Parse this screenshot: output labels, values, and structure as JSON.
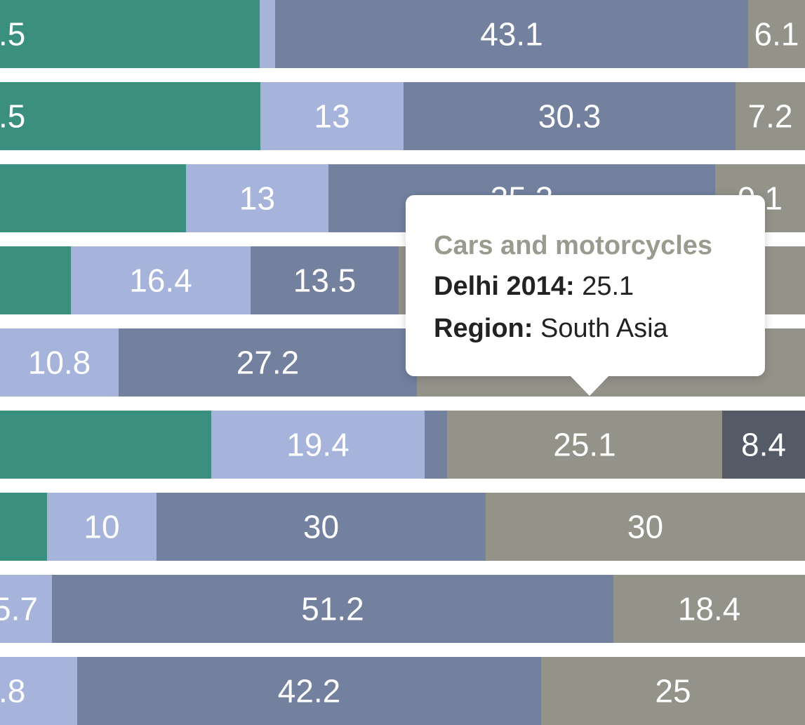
{
  "chart_data": {
    "type": "bar",
    "orientation": "horizontal",
    "stacked": true,
    "colors": [
      "#3b8f7f",
      "#a6b4dc",
      "#73819f",
      "#93938a",
      "#545a66"
    ],
    "rows": [
      {
        "segments": [
          {
            "value": null,
            "label": ".5",
            "color": "#3b8f7f",
            "start": 0,
            "end": 370
          },
          {
            "value": null,
            "label": "",
            "color": "#a6b4dc",
            "start": 370,
            "end": 392
          },
          {
            "value": 43.1,
            "label": "43.1",
            "color": "#73819f",
            "start": 392,
            "end": 1066
          },
          {
            "value": 6.1,
            "label": "6.1",
            "color": "#93938a",
            "start": 1066,
            "end": 1147
          }
        ]
      },
      {
        "segments": [
          {
            "value": null,
            "label": ".5",
            "color": "#3b8f7f",
            "start": 0,
            "end": 371
          },
          {
            "value": 13,
            "label": "13",
            "color": "#a6b4dc",
            "start": 371,
            "end": 575
          },
          {
            "value": 30.3,
            "label": "30.3",
            "color": "#73819f",
            "start": 575,
            "end": 1048
          },
          {
            "value": 7.2,
            "label": "7.2",
            "color": "#93938a",
            "start": 1048,
            "end": 1147
          }
        ]
      },
      {
        "segments": [
          {
            "value": null,
            "label": "",
            "color": "#3b8f7f",
            "start": 0,
            "end": 265
          },
          {
            "value": 13,
            "label": "13",
            "color": "#a6b4dc",
            "start": 265,
            "end": 468
          },
          {
            "value": 35.2,
            "label": "35.2",
            "color": "#73819f",
            "start": 468,
            "end": 1019
          },
          {
            "value": 9.1,
            "label": "9.1",
            "color": "#93938a",
            "start": 1019,
            "end": 1147
          }
        ]
      },
      {
        "segments": [
          {
            "value": null,
            "label": "",
            "color": "#3b8f7f",
            "start": 0,
            "end": 101
          },
          {
            "value": 16.4,
            "label": "16.4",
            "color": "#a6b4dc",
            "start": 101,
            "end": 357
          },
          {
            "value": 13.5,
            "label": "13.5",
            "color": "#73819f",
            "start": 357,
            "end": 568
          },
          {
            "value": null,
            "label": "",
            "color": "#93938a",
            "start": 568,
            "end": 1147
          }
        ]
      },
      {
        "segments": [
          {
            "value": 10.8,
            "label": "10.8",
            "color": "#a6b4dc",
            "start": 0,
            "end": 169
          },
          {
            "value": 27.2,
            "label": "27.2",
            "color": "#73819f",
            "start": 169,
            "end": 594
          },
          {
            "value": null,
            "label": "",
            "color": "#93938a",
            "start": 594,
            "end": 1147
          }
        ]
      },
      {
        "segments": [
          {
            "value": null,
            "label": "",
            "color": "#3b8f7f",
            "start": 0,
            "end": 301
          },
          {
            "value": 19.4,
            "label": "19.4",
            "color": "#a6b4dc",
            "start": 301,
            "end": 605
          },
          {
            "value": null,
            "label": "",
            "color": "#73819f",
            "start": 605,
            "end": 637
          },
          {
            "value": 25.1,
            "label": "25.1",
            "color": "#93938a",
            "start": 637,
            "end": 1029
          },
          {
            "value": 8.4,
            "label": "8.4",
            "color": "#545a66",
            "start": 1029,
            "end": 1147
          }
        ]
      },
      {
        "segments": [
          {
            "value": null,
            "label": "",
            "color": "#3b8f7f",
            "start": 0,
            "end": 67
          },
          {
            "value": 10,
            "label": "10",
            "color": "#a6b4dc",
            "start": 67,
            "end": 223
          },
          {
            "value": 30,
            "label": "30",
            "color": "#73819f",
            "start": 223,
            "end": 692
          },
          {
            "value": 30,
            "label": "30",
            "color": "#93938a",
            "start": 692,
            "end": 1147
          }
        ]
      },
      {
        "segments": [
          {
            "value": null,
            "label": "5.7",
            "color": "#a6b4dc",
            "start": 0,
            "end": 74
          },
          {
            "value": 51.2,
            "label": "51.2",
            "color": "#73819f",
            "start": 74,
            "end": 874
          },
          {
            "value": 18.4,
            "label": "18.4",
            "color": "#93938a",
            "start": 874,
            "end": 1147
          }
        ]
      },
      {
        "segments": [
          {
            "value": null,
            "label": ".8",
            "color": "#a6b4dc",
            "start": 0,
            "end": 110
          },
          {
            "value": 42.2,
            "label": "42.2",
            "color": "#73819f",
            "start": 110,
            "end": 771
          },
          {
            "value": 25,
            "label": "25",
            "color": "#93938a",
            "start": 771,
            "end": 1147
          }
        ]
      }
    ]
  },
  "tooltip": {
    "title": "Cars and motorcycles",
    "value_label": "Delhi 2014:",
    "value": "25.1",
    "region_label": "Region:",
    "region": "South Asia"
  }
}
